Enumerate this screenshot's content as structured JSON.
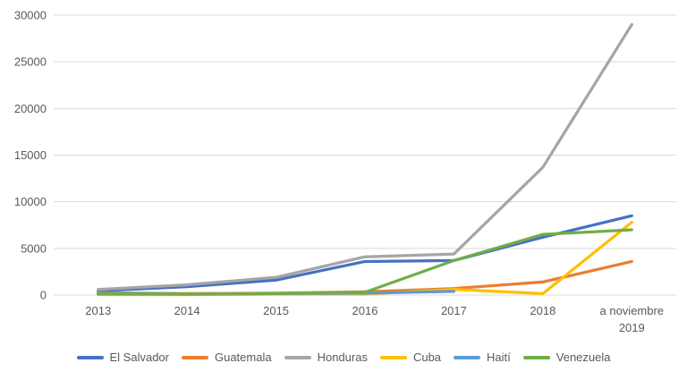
{
  "chart_data": {
    "type": "line",
    "title": "",
    "xlabel": "",
    "ylabel": "",
    "categories": [
      "2013",
      "2014",
      "2015",
      "2016",
      "2017",
      "2018",
      "a noviembre 2019"
    ],
    "series": [
      {
        "name": "El Salvador",
        "color": "#4472C4",
        "values": [
          450,
          900,
          1600,
          3600,
          3700,
          6200,
          8500
        ]
      },
      {
        "name": "Guatemala",
        "color": "#ED7D31",
        "values": [
          250,
          150,
          200,
          350,
          700,
          1400,
          3600
        ]
      },
      {
        "name": "Honduras",
        "color": "#A5A5A5",
        "values": [
          600,
          1100,
          1900,
          4100,
          4400,
          13700,
          29000
        ]
      },
      {
        "name": "Cuba",
        "color": "#FFC000",
        "values": [
          50,
          50,
          100,
          100,
          600,
          150,
          7800
        ]
      },
      {
        "name": "Haití",
        "color": "#5B9BD5",
        "values": [
          200,
          100,
          150,
          200,
          400,
          null,
          null
        ]
      },
      {
        "name": "Venezuela",
        "color": "#70AD47",
        "values": [
          120,
          100,
          150,
          300,
          3700,
          6500,
          7000
        ]
      }
    ],
    "y_axis": {
      "min": 0,
      "max": 30000,
      "step": 5000,
      "tick_labels": [
        "0",
        "5000",
        "10000",
        "15000",
        "20000",
        "25000",
        "30000"
      ]
    },
    "grid": "horizontal",
    "gridline_color": "#D9D9D9",
    "axis_text_color": "#595959",
    "legend_position": "bottom",
    "legend_entries": [
      "El Salvador",
      "Guatemala",
      "Honduras",
      "Cuba",
      "Haití",
      "Venezuela"
    ]
  }
}
